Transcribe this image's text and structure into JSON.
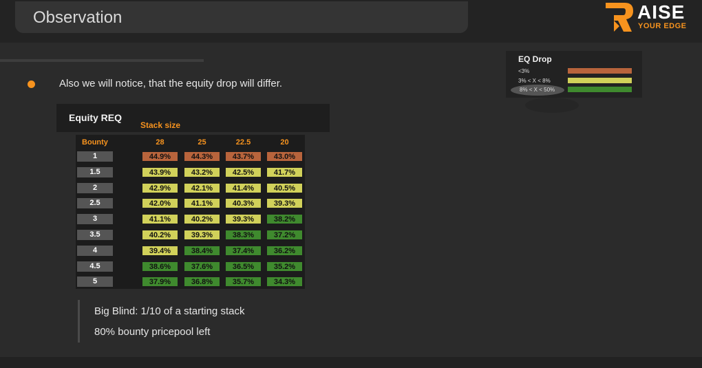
{
  "header": {
    "title": "Observation",
    "logo": {
      "word1": "AISE",
      "word2": "YOUR EDGE",
      "accent": "#f7931e"
    }
  },
  "bullet": {
    "text": "Also we will notice, that the equity drop will differ."
  },
  "legend": {
    "title": "EQ Drop",
    "items": [
      {
        "label": "<3%",
        "color": "#b8643c"
      },
      {
        "label": "3% < X < 8%",
        "color": "#d1d15a"
      },
      {
        "label": "8% < X < 50%",
        "color": "#3f8a2e"
      }
    ]
  },
  "table": {
    "title": "Equity REQ",
    "stack_label": "Stack size",
    "row_header": "Bounty",
    "columns": [
      "28",
      "25",
      "22.5",
      "20"
    ],
    "rows": [
      {
        "bounty": "1",
        "values": [
          "44.9%",
          "44.3%",
          "43.7%",
          "43.0%"
        ],
        "colors": [
          "red",
          "red",
          "red",
          "red"
        ]
      },
      {
        "bounty": "1.5",
        "values": [
          "43.9%",
          "43.2%",
          "42.5%",
          "41.7%"
        ],
        "colors": [
          "yel",
          "yel",
          "yel",
          "yel"
        ]
      },
      {
        "bounty": "2",
        "values": [
          "42.9%",
          "42.1%",
          "41.4%",
          "40.5%"
        ],
        "colors": [
          "yel",
          "yel",
          "yel",
          "yel"
        ]
      },
      {
        "bounty": "2.5",
        "values": [
          "42.0%",
          "41.1%",
          "40.3%",
          "39.3%"
        ],
        "colors": [
          "yel",
          "yel",
          "yel",
          "yel"
        ]
      },
      {
        "bounty": "3",
        "values": [
          "41.1%",
          "40.2%",
          "39.3%",
          "38.2%"
        ],
        "colors": [
          "yel",
          "yel",
          "yel",
          "grn"
        ]
      },
      {
        "bounty": "3.5",
        "values": [
          "40.2%",
          "39.3%",
          "38.3%",
          "37.2%"
        ],
        "colors": [
          "yel",
          "yel",
          "grn",
          "grn"
        ]
      },
      {
        "bounty": "4",
        "values": [
          "39.4%",
          "38.4%",
          "37.4%",
          "36.2%"
        ],
        "colors": [
          "yel",
          "grn",
          "grn",
          "grn"
        ]
      },
      {
        "bounty": "4.5",
        "values": [
          "38.6%",
          "37.6%",
          "36.5%",
          "35.2%"
        ],
        "colors": [
          "grn",
          "grn",
          "grn",
          "grn"
        ]
      },
      {
        "bounty": "5",
        "values": [
          "37.9%",
          "36.8%",
          "35.7%",
          "34.3%"
        ],
        "colors": [
          "grn",
          "grn",
          "grn",
          "grn"
        ]
      }
    ]
  },
  "notes": [
    "Big Blind: 1/10 of a starting stack",
    "80% bounty pricepool left"
  ]
}
